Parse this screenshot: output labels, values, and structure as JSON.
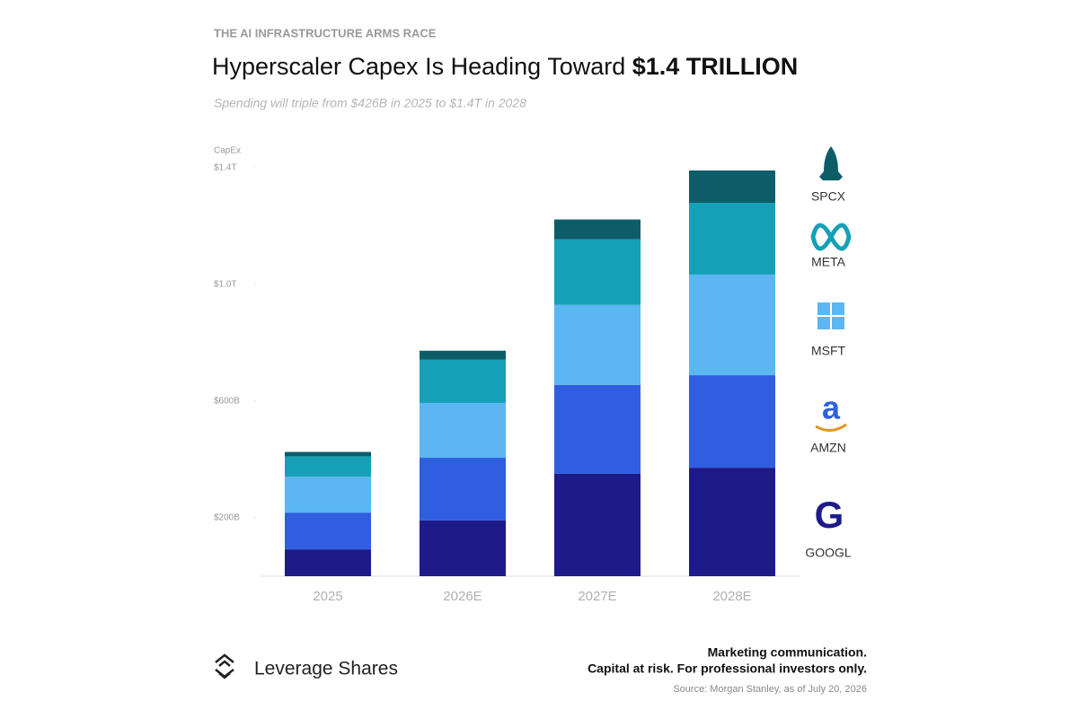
{
  "chart_data": {
    "type": "stacked-bar",
    "kicker": "THE AI INFRASTRUCTURE ARMS RACE",
    "title": "Hyperscaler Capex Is Heading Toward ",
    "title_highlight": "$1.4 TRILLION",
    "subtitle": "Spending will triple from $426B in 2025 to $1.4T in 2028",
    "y_label": "CapEx",
    "categories": [
      "2025",
      "2026E",
      "2027E",
      "2028E"
    ],
    "series": [
      {
        "name": "GOOGL",
        "color": "#1e1a8a",
        "values": [
          92,
          191,
          351,
          372
        ]
      },
      {
        "name": "AMZN",
        "color": "#2f5fe0",
        "values": [
          126,
          215,
          305,
          317
        ]
      },
      {
        "name": "MSFT",
        "color": "#5bb6f2",
        "values": [
          123,
          188,
          274,
          345
        ]
      },
      {
        "name": "META",
        "color": "#16a0b8",
        "values": [
          70,
          148,
          225,
          246
        ]
      },
      {
        "name": "SPCX",
        "color": "#0d5d69",
        "values": [
          15,
          31,
          68,
          111
        ]
      }
    ],
    "ylim": [
      0,
      1400
    ],
    "yticks": [
      {
        "value": 200,
        "label": "$200B"
      },
      {
        "value": 600,
        "label": "$600B"
      },
      {
        "value": 1000,
        "label": "$1.0T"
      },
      {
        "value": 1400,
        "label": "$1.4T"
      }
    ],
    "brand": "Leverage Shares",
    "disclaimer_1": "Marketing communication.",
    "disclaimer_2": "Capital at risk. For professional investors only.",
    "source": "Source: Morgan Stanley, as of July 20, 2026"
  }
}
